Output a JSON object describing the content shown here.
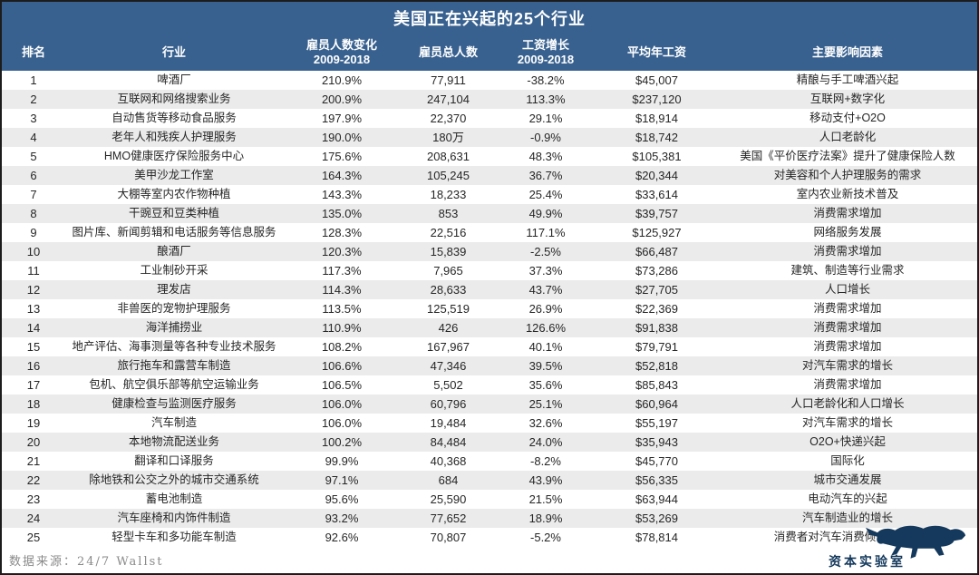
{
  "chart_data": {
    "type": "table",
    "title": "美国正在兴起的25个行业",
    "columns": [
      {
        "key": "rank",
        "label": "排名"
      },
      {
        "key": "industry",
        "label": "行业"
      },
      {
        "key": "emp_change",
        "label": "雇员人数变化",
        "sub": "2009-2018"
      },
      {
        "key": "emp_total",
        "label": "雇员总人数"
      },
      {
        "key": "wage_growth",
        "label": "工资增长",
        "sub": "2009-2018"
      },
      {
        "key": "avg_wage",
        "label": "平均年工资"
      },
      {
        "key": "factors",
        "label": "主要影响因素"
      }
    ],
    "rows": [
      [
        "1",
        "啤酒厂",
        "210.9%",
        "77,911",
        "-38.2%",
        "$45,007",
        "精酿与手工啤酒兴起"
      ],
      [
        "2",
        "互联网和网络搜索业务",
        "200.9%",
        "247,104",
        "113.3%",
        "$237,120",
        "互联网+数字化"
      ],
      [
        "3",
        "自动售货等移动食品服务",
        "197.9%",
        "22,370",
        "29.1%",
        "$18,914",
        "移动支付+O2O"
      ],
      [
        "4",
        "老年人和残疾人护理服务",
        "190.0%",
        "180万",
        "-0.9%",
        "$18,742",
        "人口老龄化"
      ],
      [
        "5",
        "HMO健康医疗保险服务中心",
        "175.6%",
        "208,631",
        "48.3%",
        "$105,381",
        "美国《平价医疗法案》提升了健康保险人数"
      ],
      [
        "6",
        "美甲沙龙工作室",
        "164.3%",
        "105,245",
        "36.7%",
        "$20,344",
        "对美容和个人护理服务的需求"
      ],
      [
        "7",
        "大棚等室内农作物种植",
        "143.3%",
        "18,233",
        "25.4%",
        "$33,614",
        "室内农业新技术普及"
      ],
      [
        "8",
        "干豌豆和豆类种植",
        "135.0%",
        "853",
        "49.9%",
        "$39,757",
        "消费需求增加"
      ],
      [
        "9",
        "图片库、新闻剪辑和电话服务等信息服务",
        "128.3%",
        "22,516",
        "117.1%",
        "$125,927",
        "网络服务发展"
      ],
      [
        "10",
        "酿酒厂",
        "120.3%",
        "15,839",
        "-2.5%",
        "$66,487",
        "消费需求增加"
      ],
      [
        "11",
        "工业制砂开采",
        "117.3%",
        "7,965",
        "37.3%",
        "$73,286",
        "建筑、制造等行业需求"
      ],
      [
        "12",
        "理发店",
        "114.3%",
        "28,633",
        "43.7%",
        "$27,705",
        "人口增长"
      ],
      [
        "13",
        "非兽医的宠物护理服务",
        "113.5%",
        "125,519",
        "26.9%",
        "$22,369",
        "消费需求增加"
      ],
      [
        "14",
        "海洋捕捞业",
        "110.9%",
        "426",
        "126.6%",
        "$91,838",
        "消费需求增加"
      ],
      [
        "15",
        "地产评估、海事测量等各种专业技术服务",
        "108.2%",
        "167,967",
        "40.1%",
        "$79,791",
        "消费需求增加"
      ],
      [
        "16",
        "旅行拖车和露营车制造",
        "106.6%",
        "47,346",
        "39.5%",
        "$52,818",
        "对汽车需求的增长"
      ],
      [
        "17",
        "包机、航空俱乐部等航空运输业务",
        "106.5%",
        "5,502",
        "35.6%",
        "$85,843",
        "消费需求增加"
      ],
      [
        "18",
        "健康检查与监测医疗服务",
        "106.0%",
        "60,796",
        "25.1%",
        "$60,964",
        "人口老龄化和人口增长"
      ],
      [
        "19",
        "汽车制造",
        "106.0%",
        "19,484",
        "32.6%",
        "$55,197",
        "对汽车需求的增长"
      ],
      [
        "20",
        "本地物流配送业务",
        "100.2%",
        "84,484",
        "24.0%",
        "$35,943",
        "O2O+快递兴起"
      ],
      [
        "21",
        "翻译和口译服务",
        "99.9%",
        "40,368",
        "-8.2%",
        "$45,770",
        "国际化"
      ],
      [
        "22",
        "除地铁和公交之外的城市交通系统",
        "97.1%",
        "684",
        "43.9%",
        "$56,335",
        "城市交通发展"
      ],
      [
        "23",
        "蓄电池制造",
        "95.6%",
        "25,590",
        "21.5%",
        "$63,944",
        "电动汽车的兴起"
      ],
      [
        "24",
        "汽车座椅和内饰件制造",
        "93.2%",
        "77,652",
        "18.9%",
        "$53,269",
        "汽车制造业的增长"
      ],
      [
        "25",
        "轻型卡车和多功能车制造",
        "92.6%",
        "70,807",
        "-5.2%",
        "$78,814",
        "消费者对汽车消费倾向的变化"
      ]
    ]
  },
  "footer": {
    "source": "数据来源：24/7 Wallst"
  },
  "logo": {
    "text": "资本实验室"
  },
  "colors": {
    "header_bg": "#38618f",
    "header_text": "#ffffff",
    "row_alt_bg": "#ebebeb",
    "body_text": "#262626",
    "source_text": "#8a8a8a",
    "logo_navy": "#14395c",
    "frame_border": "#1c1c1c"
  }
}
